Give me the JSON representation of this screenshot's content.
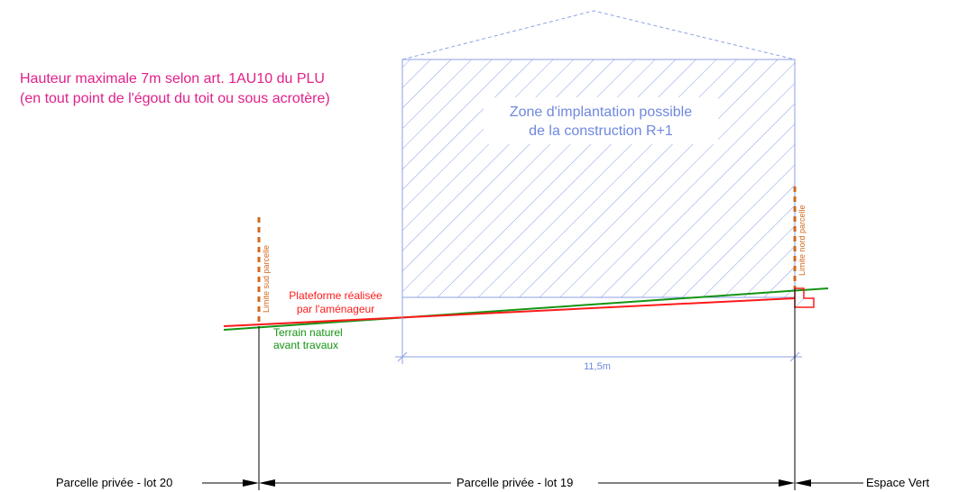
{
  "note": {
    "line1": "Hauteur maximale 7m selon art. 1AU10 du PLU",
    "line2": "(en tout point de l'égout du toit ou sous acrotère)"
  },
  "zone": {
    "line1": "Zone d'implantation possible",
    "line2": "de la construction R+1"
  },
  "labels": {
    "plateforme_1": "Plateforme réalisée",
    "plateforme_2": "par l'aménageur",
    "terrain_1": "Terrain naturel",
    "terrain_2": "avant travaux",
    "limite_sud": "Limite sud parcelle",
    "limite_nord": "Limite nord parcelle",
    "dimension": "11,5m"
  },
  "parcels": {
    "lot20": "Parcelle privée - lot 20",
    "lot19": "Parcelle privée - lot 19",
    "espace_vert": "Espace Vert"
  },
  "colors": {
    "note": "#e0218a",
    "zone": "#6f88e0",
    "plateforme": "#ff1a1a",
    "terrain": "#149414",
    "limite": "#d2691e",
    "axis": "#000000"
  }
}
